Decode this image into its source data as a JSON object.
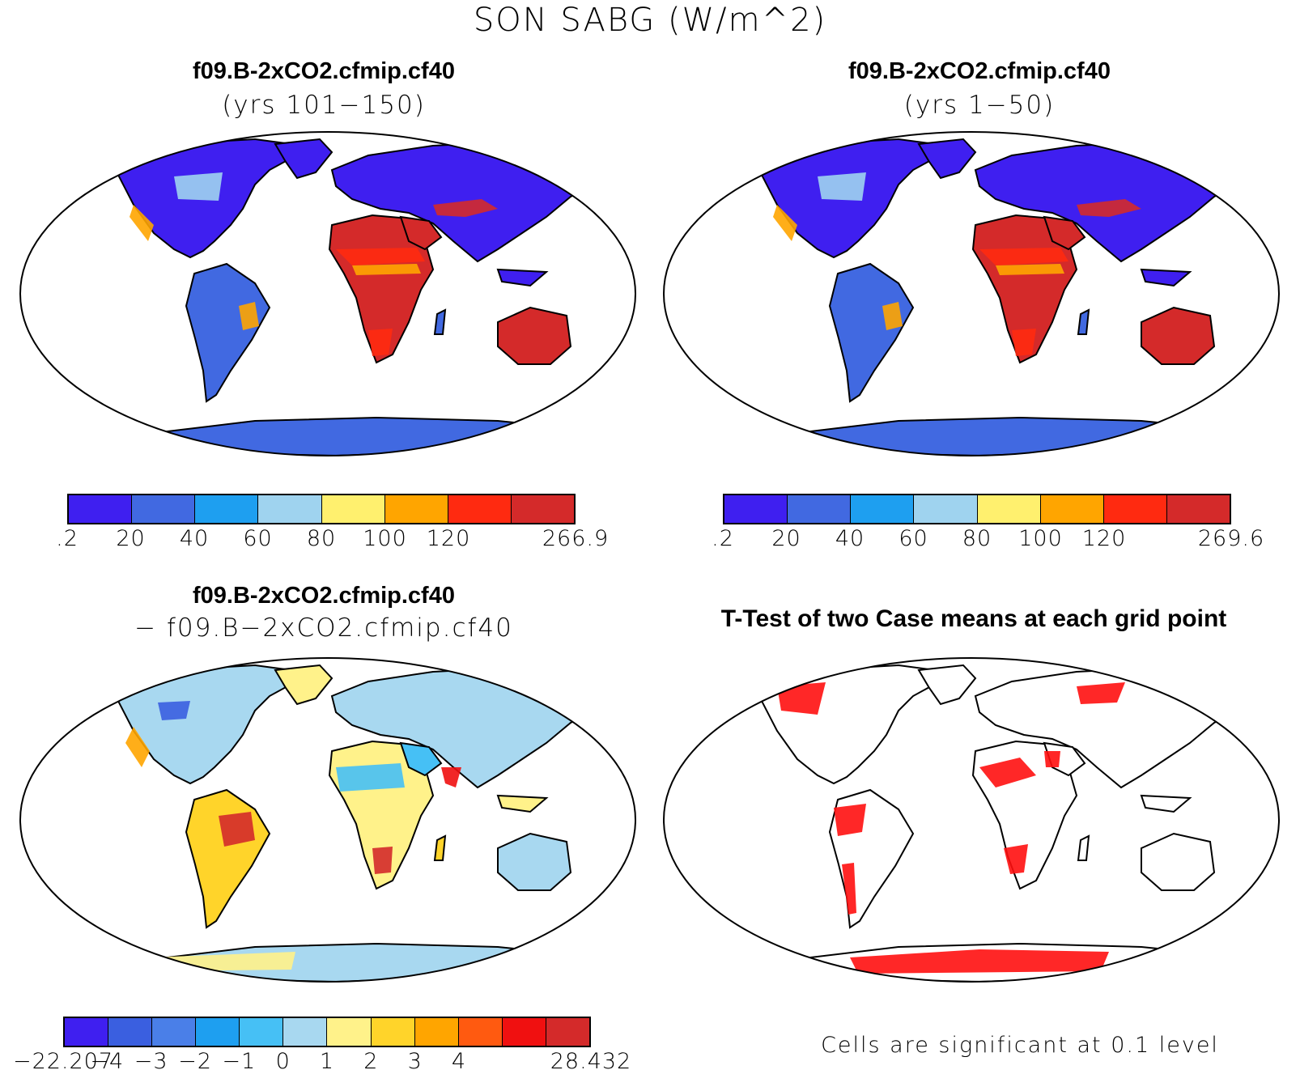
{
  "title": "SON SABG (W/m^2)",
  "panels": [
    {
      "id": "case1",
      "title": "f09.B-2xCO2.cfmip.cf40",
      "subtitle": "(yrs 101−150)",
      "colorbar": {
        "colors": [
          "#3f1ff0",
          "#4169e1",
          "#1e9ff0",
          "#9fd3ef",
          "#fff06e",
          "#ffa500",
          "#ff2a10",
          "#d42a2a"
        ],
        "labels": [
          ".2",
          "20",
          "40",
          "60",
          "80",
          "100",
          "120",
          "266.9"
        ]
      }
    },
    {
      "id": "case2",
      "title": "f09.B-2xCO2.cfmip.cf40",
      "subtitle": "(yrs 1−50)",
      "colorbar": {
        "colors": [
          "#3f1ff0",
          "#4169e1",
          "#1e9ff0",
          "#9fd3ef",
          "#fff06e",
          "#ffa500",
          "#ff2a10",
          "#d42a2a"
        ],
        "labels": [
          ".2",
          "20",
          "40",
          "60",
          "80",
          "100",
          "120",
          "269.6"
        ]
      }
    },
    {
      "id": "diff",
      "title": "f09.B-2xCO2.cfmip.cf40",
      "subtitle": "− f09.B−2xCO2.cfmip.cf40",
      "colorbar": {
        "colors": [
          "#3f1ff0",
          "#3a5fe0",
          "#4a7fe8",
          "#1e9ff0",
          "#46c0f5",
          "#a8d8f0",
          "#fff28a",
          "#ffd42a",
          "#ffa500",
          "#ff5a10",
          "#f01010",
          "#d42a2a"
        ],
        "labels": [
          "−22.207",
          "−4",
          "−3",
          "−2",
          "−1",
          "0",
          "1",
          "2",
          "3",
          "4",
          "28.432"
        ]
      }
    },
    {
      "id": "ttest",
      "title": "T-Test of two Case means at each grid point",
      "note": "Cells are significant at 0.1 level"
    }
  ]
}
